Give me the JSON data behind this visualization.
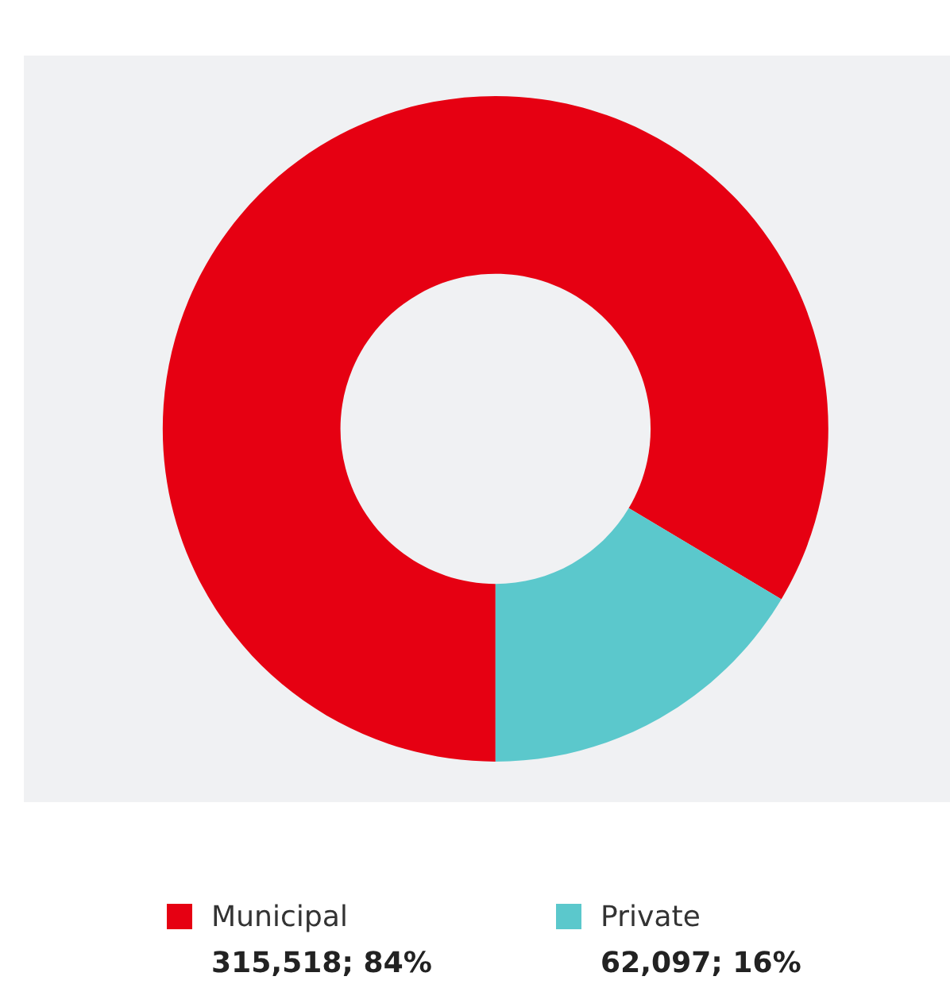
{
  "chart_data": {
    "type": "donut",
    "categories": [
      "Municipal",
      "Private"
    ],
    "values": [
      315518,
      62097
    ],
    "colors": [
      "#e60012",
      "#5bc8cc"
    ],
    "value_labels": [
      "315,518; 84%",
      "62,097; 16%"
    ],
    "legend": "bottom"
  }
}
